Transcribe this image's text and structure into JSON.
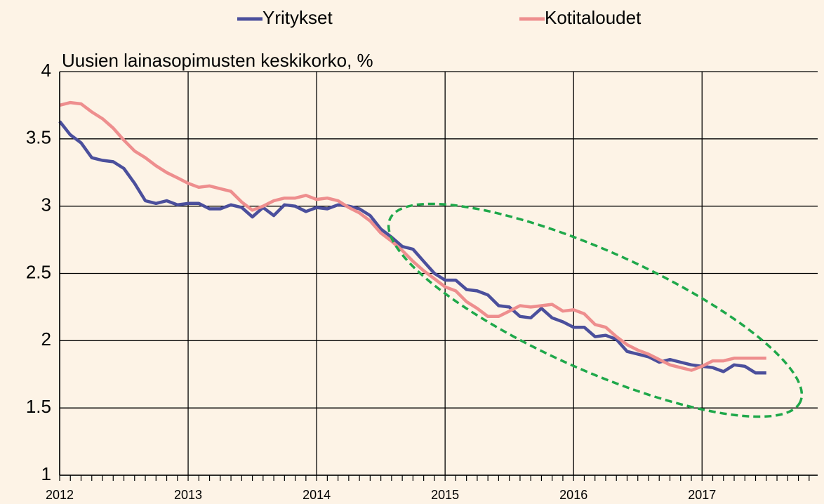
{
  "chart_data": {
    "type": "line",
    "ylabel": "Uusien lainasopimusten keskikorko, %",
    "x": [
      2012,
      2012.083,
      2012.167,
      2012.25,
      2012.333,
      2012.417,
      2012.5,
      2012.583,
      2012.667,
      2012.75,
      2012.833,
      2012.917,
      2013,
      2013.083,
      2013.167,
      2013.25,
      2013.333,
      2013.417,
      2013.5,
      2013.583,
      2013.667,
      2013.75,
      2013.833,
      2013.917,
      2014,
      2014.083,
      2014.167,
      2014.25,
      2014.333,
      2014.417,
      2014.5,
      2014.583,
      2014.667,
      2014.75,
      2014.833,
      2014.917,
      2015,
      2015.083,
      2015.167,
      2015.25,
      2015.333,
      2015.417,
      2015.5,
      2015.583,
      2015.667,
      2015.75,
      2015.833,
      2015.917,
      2016,
      2016.083,
      2016.167,
      2016.25,
      2016.333,
      2016.417,
      2016.5,
      2016.583,
      2016.667,
      2016.75,
      2016.833,
      2016.917,
      2017,
      2017.083,
      2017.167,
      2017.25,
      2017.333,
      2017.417,
      2017.5
    ],
    "series": [
      {
        "name": "Yritykset",
        "color": "#4b4f9c",
        "values": [
          3.63,
          3.53,
          3.47,
          3.36,
          3.34,
          3.33,
          3.28,
          3.17,
          3.04,
          3.02,
          3.04,
          3.01,
          3.02,
          3.02,
          2.98,
          2.98,
          3.01,
          2.99,
          2.92,
          2.99,
          2.93,
          3.01,
          3.0,
          2.96,
          2.99,
          2.98,
          3.01,
          3.0,
          2.98,
          2.93,
          2.83,
          2.77,
          2.7,
          2.68,
          2.59,
          2.5,
          2.45,
          2.45,
          2.38,
          2.37,
          2.34,
          2.26,
          2.25,
          2.18,
          2.17,
          2.24,
          2.17,
          2.14,
          2.1,
          2.1,
          2.03,
          2.04,
          2.01,
          1.92,
          1.9,
          1.88,
          1.84,
          1.86,
          1.84,
          1.82,
          1.81,
          1.8,
          1.77,
          1.82,
          1.81,
          1.76,
          1.76
        ]
      },
      {
        "name": "Kotitaloudet",
        "color": "#ee8e8e",
        "values": [
          3.75,
          3.77,
          3.76,
          3.7,
          3.65,
          3.58,
          3.49,
          3.41,
          3.36,
          3.3,
          3.25,
          3.21,
          3.17,
          3.14,
          3.15,
          3.13,
          3.11,
          3.03,
          2.97,
          3.0,
          3.04,
          3.06,
          3.06,
          3.08,
          3.05,
          3.06,
          3.04,
          2.99,
          2.95,
          2.89,
          2.8,
          2.74,
          2.67,
          2.59,
          2.52,
          2.46,
          2.4,
          2.37,
          2.29,
          2.24,
          2.18,
          2.18,
          2.22,
          2.26,
          2.25,
          2.26,
          2.27,
          2.22,
          2.23,
          2.2,
          2.12,
          2.1,
          2.03,
          1.97,
          1.93,
          1.9,
          1.86,
          1.82,
          1.8,
          1.78,
          1.81,
          1.85,
          1.85,
          1.87,
          1.87,
          1.87,
          1.87
        ]
      }
    ],
    "xlim": [
      2012,
      2017.9
    ],
    "xticks": [
      2012,
      2013,
      2014,
      2015,
      2016,
      2017
    ],
    "ylim": [
      1,
      4
    ],
    "yticks": [
      1,
      1.5,
      2,
      2.5,
      3,
      3.5,
      4
    ],
    "grid": true,
    "legend": "top"
  }
}
